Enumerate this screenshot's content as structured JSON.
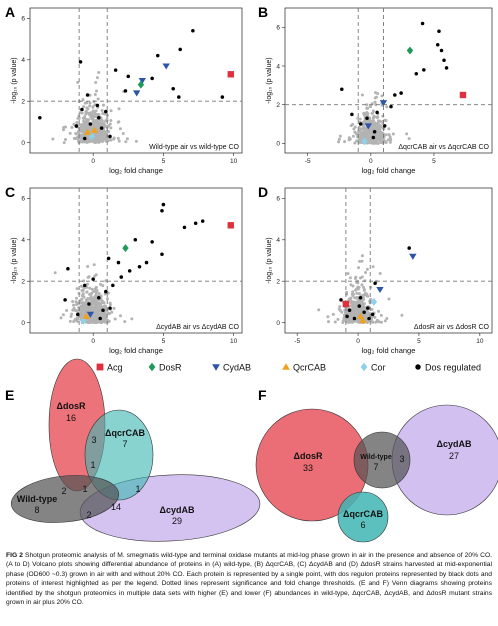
{
  "panels": [
    {
      "letter": "A",
      "title": "Wild-type air vs wild-type CO"
    },
    {
      "letter": "B",
      "title": "ΔqcrCAB air vs ΔqcrCAB CO"
    },
    {
      "letter": "C",
      "title": "ΔcydAB air vs ΔcydAB CO"
    },
    {
      "letter": "D",
      "title": "ΔdosR air vs ΔdosR CO"
    }
  ],
  "axis": {
    "xlabel": "log₂ fold change",
    "ylabel": "-log₁₀ (p value)"
  },
  "legend": [
    {
      "label": "Acg",
      "color": "#e0303d",
      "marker": "square"
    },
    {
      "label": "DosR",
      "color": "#1e9a5a",
      "marker": "diamond"
    },
    {
      "label": "CydAB",
      "color": "#2c55a8",
      "marker": "triangle-down"
    },
    {
      "label": "QcrCAB",
      "color": "#f0a21c",
      "marker": "triangle-up"
    },
    {
      "label": "Cor",
      "color": "#8fd0ea",
      "marker": "diamond"
    },
    {
      "label": "Dos regulated",
      "color": "#000000",
      "marker": "circle"
    }
  ],
  "venn": {
    "E": {
      "letter": "E",
      "sets": [
        {
          "name": "ΔdosR",
          "count": "16",
          "color": "#e8545d"
        },
        {
          "name": "ΔqcrCAB",
          "count": "7",
          "color": "#3fb6b3"
        },
        {
          "name": "ΔcydAB",
          "count": "29",
          "color": "#b79ae8"
        },
        {
          "name": "Wild-type",
          "count": "8",
          "color": "#6a6a6a"
        }
      ],
      "overlaps": [
        "1",
        "3",
        "1",
        "2",
        "1",
        "14",
        "2"
      ]
    },
    "F": {
      "letter": "F",
      "sets": [
        {
          "name": "ΔdosR",
          "count": "33",
          "color": "#e8545d"
        },
        {
          "name": "Wild-type",
          "count": "7",
          "color": "#6a6a6a"
        },
        {
          "name": "ΔcydAB",
          "count": "27",
          "color": "#b79ae8"
        },
        {
          "name": "ΔqcrCAB",
          "count": "6",
          "color": "#3fb6b3"
        }
      ],
      "overlaps": [
        "3"
      ]
    }
  },
  "caption": {
    "lead": "FIG 2",
    "text": "Shotgun proteomic analysis of M. smegmatis wild-type and terminal oxidase mutants at mid-log phase grown in air in the presence and absence of 20% CO. (A to D) Volcano plots showing differential abundance of proteins in (A) wild-type, (B) ΔqcrCAB, (C) ΔcydAB and (D) ΔdosR strains harvested at mid-exponential phase (OD600 ~0.3) grown in air with and without 20% CO. Each protein is represented by a single point, with dos regulon proteins represented by black dots and proteins of interest highlighted as per the legend. Dotted lines represent significance and fold change thresholds. (E and F) Venn diagrams showing proteins identified by the shotgun proteomics in multiple data sets with higher (E) and lower (F) abundances in wild-type, ΔqcrCAB, ΔcydAB, and ΔdosR mutant strains grown in air plus 20% CO."
  },
  "chart_data": [
    {
      "type": "scatter",
      "panel": "A",
      "title": "Wild-type air vs wild-type CO",
      "xlabel": "log₂ fold change",
      "ylabel": "-log₁₀ (p value)",
      "xlim": [
        -4.5,
        10.6
      ],
      "ylim": [
        -0.5,
        6.5
      ],
      "xticks": [
        0,
        5,
        10
      ],
      "yticks": [
        0,
        2,
        4,
        6
      ],
      "thresholds": {
        "x": [
          -1,
          1
        ],
        "y": 2
      },
      "series": [
        {
          "name": "Acg",
          "points": [
            [
              9.8,
              3.3
            ]
          ]
        },
        {
          "name": "DosR",
          "points": [
            [
              3.4,
              2.8
            ]
          ]
        },
        {
          "name": "CydAB",
          "points": [
            [
              5.2,
              3.7
            ],
            [
              3.1,
              2.4
            ],
            [
              3.5,
              3.0
            ]
          ]
        },
        {
          "name": "QcrCAB",
          "points": [
            [
              -0.4,
              0.5
            ],
            [
              0.1,
              0.6
            ]
          ]
        },
        {
          "name": "Cor",
          "points": [
            [
              -0.1,
              0.3
            ]
          ]
        },
        {
          "name": "Dos regulated",
          "points": [
            [
              7.1,
              5.4
            ],
            [
              6.2,
              4.5
            ],
            [
              4.6,
              4.2
            ],
            [
              9.2,
              2.2
            ],
            [
              4.2,
              3.1
            ],
            [
              2.3,
              2.5
            ],
            [
              -3.8,
              1.2
            ],
            [
              -0.9,
              3.9
            ],
            [
              1.6,
              3.5
            ],
            [
              2.5,
              3.2
            ],
            [
              6.1,
              2.2
            ],
            [
              5.7,
              2.6
            ],
            [
              -0.8,
              1.6
            ],
            [
              -0.4,
              2.3
            ],
            [
              0.4,
              1.2
            ],
            [
              -0.2,
              0.9
            ],
            [
              0.6,
              0.7
            ],
            [
              -0.6,
              0.2
            ],
            [
              0.3,
              1.8
            ],
            [
              1.2,
              0.3
            ],
            [
              -1.2,
              0.8
            ],
            [
              0.9,
              1.5
            ]
          ]
        }
      ]
    },
    {
      "type": "scatter",
      "panel": "B",
      "title": "ΔqcrCAB air vs ΔqcrCAB CO",
      "xlabel": "log₂ fold change",
      "ylabel": "-log₁₀ (p value)",
      "xlim": [
        -6.8,
        9.6
      ],
      "ylim": [
        -0.5,
        7.0
      ],
      "xticks": [
        -5,
        0,
        5
      ],
      "yticks": [
        0,
        2,
        4,
        6
      ],
      "thresholds": {
        "x": [
          -1,
          1
        ],
        "y": 2
      },
      "series": [
        {
          "name": "Acg",
          "points": [
            [
              7.3,
              2.5
            ]
          ]
        },
        {
          "name": "DosR",
          "points": [
            [
              3.1,
              4.8
            ]
          ]
        },
        {
          "name": "CydAB",
          "points": [
            [
              1.0,
              2.1
            ],
            [
              -0.2,
              0.9
            ]
          ]
        },
        {
          "name": "QcrCAB",
          "points": []
        },
        {
          "name": "Cor",
          "points": [
            [
              -0.5,
              0.1
            ]
          ]
        },
        {
          "name": "Dos regulated",
          "points": [
            [
              4.1,
              6.2
            ],
            [
              5.4,
              5.8
            ],
            [
              5.3,
              5.1
            ],
            [
              5.6,
              4.8
            ],
            [
              5.8,
              4.3
            ],
            [
              6.0,
              3.9
            ],
            [
              4.2,
              3.8
            ],
            [
              2.4,
              2.6
            ],
            [
              1.9,
              2.5
            ],
            [
              3.6,
              3.6
            ],
            [
              1.6,
              1.9
            ],
            [
              0.5,
              1.6
            ],
            [
              -0.8,
              1.0
            ],
            [
              -1.5,
              1.5
            ],
            [
              0.3,
              0.6
            ],
            [
              -0.3,
              1.3
            ],
            [
              1.1,
              0.9
            ],
            [
              -2.3,
              2.8
            ],
            [
              0.2,
              0.3
            ]
          ]
        }
      ]
    },
    {
      "type": "scatter",
      "panel": "C",
      "title": "ΔcydAB air vs ΔcydAB CO",
      "xlabel": "log₂ fold change",
      "ylabel": "-log₁₀ (p value)",
      "xlim": [
        -4.5,
        10.6
      ],
      "ylim": [
        -0.5,
        6.5
      ],
      "xticks": [
        0,
        5,
        10
      ],
      "yticks": [
        0,
        2,
        4,
        6
      ],
      "thresholds": {
        "x": [
          -1,
          1
        ],
        "y": 2
      },
      "series": [
        {
          "name": "Acg",
          "points": [
            [
              9.8,
              4.7
            ]
          ]
        },
        {
          "name": "DosR",
          "points": [
            [
              2.3,
              3.6
            ]
          ]
        },
        {
          "name": "CydAB",
          "points": [
            [
              -0.2,
              0.4
            ]
          ]
        },
        {
          "name": "QcrCAB",
          "points": [
            [
              -0.5,
              0.3
            ]
          ]
        },
        {
          "name": "Cor",
          "points": [
            [
              -0.7,
              0.1
            ]
          ]
        },
        {
          "name": "Dos regulated",
          "points": [
            [
              5.0,
              5.7
            ],
            [
              4.9,
              5.4
            ],
            [
              7.3,
              4.8
            ],
            [
              6.5,
              4.6
            ],
            [
              7.8,
              4.9
            ],
            [
              3.0,
              4.0
            ],
            [
              4.2,
              3.9
            ],
            [
              4.9,
              3.3
            ],
            [
              3.8,
              2.9
            ],
            [
              3.3,
              2.7
            ],
            [
              2.6,
              2.5
            ],
            [
              1.8,
              2.9
            ],
            [
              2.0,
              2.2
            ],
            [
              1.1,
              3.1
            ],
            [
              1.4,
              1.8
            ],
            [
              0.9,
              1.5
            ],
            [
              0.4,
              1.2
            ],
            [
              -0.6,
              1.8
            ],
            [
              -1.8,
              2.6
            ],
            [
              -0.3,
              0.9
            ],
            [
              0.7,
              0.6
            ],
            [
              -1.1,
              0.4
            ],
            [
              1.2,
              0.7
            ],
            [
              0.0,
              2.1
            ],
            [
              -2.0,
              1.1
            ],
            [
              0.5,
              0.2
            ]
          ]
        }
      ]
    },
    {
      "type": "scatter",
      "panel": "D",
      "title": "ΔdosR air vs ΔdosR CO",
      "xlabel": "log₂ fold change",
      "ylabel": "-log₁₀ (p value)",
      "xlim": [
        -6.0,
        11.0
      ],
      "ylim": [
        -0.5,
        6.5
      ],
      "xticks": [
        -5,
        0,
        5,
        10
      ],
      "yticks": [
        0,
        2,
        4,
        6
      ],
      "thresholds": {
        "x": [
          -1,
          1
        ],
        "y": 2
      },
      "series": [
        {
          "name": "Acg",
          "points": [
            [
              -1.0,
              0.9
            ]
          ]
        },
        {
          "name": "DosR",
          "points": []
        },
        {
          "name": "CydAB",
          "points": [
            [
              4.5,
              3.2
            ],
            [
              1.8,
              1.6
            ]
          ]
        },
        {
          "name": "QcrCAB",
          "points": [
            [
              0.2,
              0.3
            ],
            [
              0.4,
              0.1
            ]
          ]
        },
        {
          "name": "Cor",
          "points": [
            [
              1.3,
              1.0
            ]
          ]
        },
        {
          "name": "Dos regulated",
          "points": [
            [
              4.2,
              3.6
            ],
            [
              -1.4,
              1.1
            ],
            [
              -0.7,
              0.6
            ],
            [
              0.2,
              1.2
            ],
            [
              0.8,
              0.7
            ],
            [
              1.2,
              0.4
            ],
            [
              -0.3,
              0.2
            ],
            [
              0.5,
              0.5
            ],
            [
              1.4,
              1.9
            ],
            [
              -0.9,
              0.3
            ],
            [
              0.1,
              0.8
            ],
            [
              0.9,
              0.2
            ]
          ]
        }
      ]
    }
  ]
}
